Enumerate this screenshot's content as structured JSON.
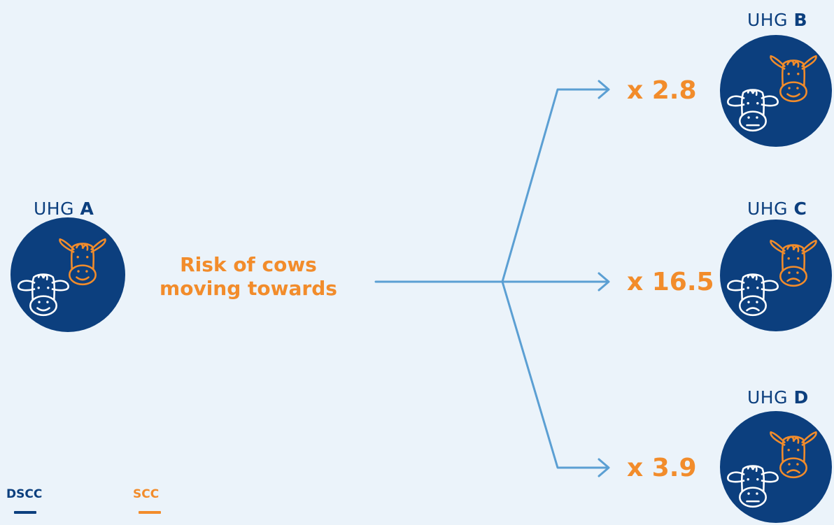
{
  "source": {
    "group_prefix": "UHG",
    "group_letter": "A"
  },
  "risk_label_line1": "Risk of cows",
  "risk_label_line2": "moving towards",
  "targets": [
    {
      "group_prefix": "UHG",
      "group_letter": "B",
      "multiplier": "x 2.8"
    },
    {
      "group_prefix": "UHG",
      "group_letter": "C",
      "multiplier": "x 16.5"
    },
    {
      "group_prefix": "UHG",
      "group_letter": "D",
      "multiplier": "x 3.9"
    }
  ],
  "legend": [
    {
      "label": "DSCC",
      "color": "#0c3f7e"
    },
    {
      "label": "SCC",
      "color": "#f28c2b"
    }
  ],
  "colors": {
    "circle": "#0c3f7e",
    "arrow": "#5b9fd3",
    "dscc_cow": "#ffffff",
    "scc_cow": "#f28c2b",
    "background": "#ebf3fa"
  },
  "icons": [
    "cow-happy-icon",
    "cow-neutral-icon",
    "cow-sad-icon"
  ]
}
